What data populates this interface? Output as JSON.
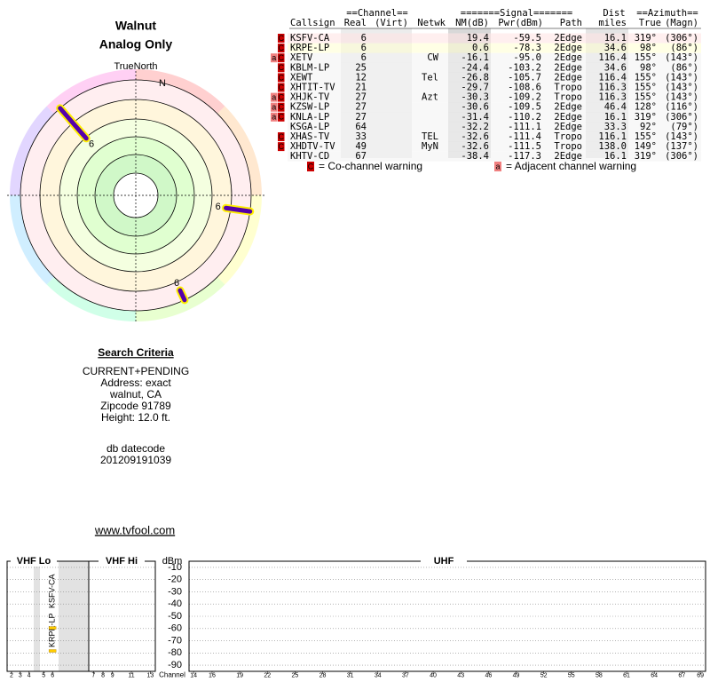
{
  "header": {
    "location": "Walnut",
    "mode": "Analog Only",
    "north": "TrueNorth",
    "north_marker": "N"
  },
  "table": {
    "group_headers": [
      "==Channel==",
      "=======Signal=======",
      "Dist",
      "==Azimuth=="
    ],
    "columns": [
      "Callsign",
      "Real",
      "(Virt)",
      "Netwk",
      "NM(dB)",
      "Pwr(dBm)",
      "Path",
      "miles",
      "True",
      "(Magn)"
    ],
    "rows": [
      {
        "flags": [
          "C"
        ],
        "callsign": "KSFV-CA",
        "real": "6",
        "netwk": "",
        "nm": "19.4",
        "pwr": "-59.5",
        "path": "2Edge",
        "miles": "16.1",
        "true": "319°",
        "magn": "(306°)",
        "color": "#990033",
        "bg": "#ffe4e4"
      },
      {
        "flags": [
          "C"
        ],
        "callsign": "KRPE-LP",
        "real": "6",
        "netwk": "",
        "nm": "0.6",
        "pwr": "-78.3",
        "path": "2Edge",
        "miles": "34.6",
        "true": "98°",
        "magn": "(86°)",
        "color": "#808000",
        "bg": "#ffffd4"
      },
      {
        "flags": [
          "a",
          "C"
        ],
        "callsign": "XETV",
        "real": "6",
        "netwk": "CW",
        "nm": "-16.1",
        "pwr": "-95.0",
        "path": "2Edge",
        "miles": "116.4",
        "true": "155°",
        "magn": "(143°)",
        "color": "#006633",
        "bg": "#f4f4f4"
      },
      {
        "flags": [
          "C"
        ],
        "callsign": "KBLM-LP",
        "real": "25",
        "netwk": "",
        "nm": "-24.4",
        "pwr": "-103.2",
        "path": "2Edge",
        "miles": "34.6",
        "true": "98°",
        "magn": "(86°)",
        "color": "#808000",
        "bg": "#f4f4f4"
      },
      {
        "flags": [
          "C"
        ],
        "callsign": "XEWT",
        "real": "12",
        "netwk": "Tel",
        "nm": "-26.8",
        "pwr": "-105.7",
        "path": "2Edge",
        "miles": "116.4",
        "true": "155°",
        "magn": "(143°)",
        "color": "#006633",
        "bg": "#f4f4f4"
      },
      {
        "flags": [
          "C"
        ],
        "callsign": "XHTIT-TV",
        "real": "21",
        "netwk": "",
        "nm": "-29.7",
        "pwr": "-108.6",
        "path": "Tropo",
        "miles": "116.3",
        "true": "155°",
        "magn": "(143°)",
        "color": "#006633",
        "bg": "#f4f4f4"
      },
      {
        "flags": [
          "a",
          "C"
        ],
        "callsign": "XHJK-TV",
        "real": "27",
        "netwk": "Azt",
        "nm": "-30.3",
        "pwr": "-109.2",
        "path": "Tropo",
        "miles": "116.3",
        "true": "155°",
        "magn": "(143°)",
        "color": "#006633",
        "bg": "#f4f4f4"
      },
      {
        "flags": [
          "a",
          "C"
        ],
        "callsign": "KZSW-LP",
        "real": "27",
        "netwk": "",
        "nm": "-30.6",
        "pwr": "-109.5",
        "path": "2Edge",
        "miles": "46.4",
        "true": "128°",
        "magn": "(116°)",
        "color": "#006633",
        "bg": "#f4f4f4"
      },
      {
        "flags": [
          "a",
          "C"
        ],
        "callsign": "KNLA-LP",
        "real": "27",
        "netwk": "",
        "nm": "-31.4",
        "pwr": "-110.2",
        "path": "2Edge",
        "miles": "16.1",
        "true": "319°",
        "magn": "(306°)",
        "color": "#990033",
        "bg": "#f4f4f4"
      },
      {
        "flags": [],
        "callsign": "KSGA-LP",
        "real": "64",
        "netwk": "",
        "nm": "-32.2",
        "pwr": "-111.1",
        "path": "2Edge",
        "miles": "33.3",
        "true": "92°",
        "magn": "(79°)",
        "color": "#808000",
        "bg": "#f4f4f4"
      },
      {
        "flags": [
          "C"
        ],
        "callsign": "XHAS-TV",
        "real": "33",
        "netwk": "TEL",
        "nm": "-32.6",
        "pwr": "-111.4",
        "path": "Tropo",
        "miles": "116.1",
        "true": "155°",
        "magn": "(143°)",
        "color": "#006633",
        "bg": "#f4f4f4"
      },
      {
        "flags": [
          "C"
        ],
        "callsign": "XHDTV-TV",
        "real": "49",
        "netwk": "MyN",
        "nm": "-32.6",
        "pwr": "-111.5",
        "path": "Tropo",
        "miles": "138.0",
        "true": "149°",
        "magn": "(137°)",
        "color": "#006633",
        "bg": "#f4f4f4"
      },
      {
        "flags": [],
        "callsign": "KHTV-CD",
        "real": "67",
        "netwk": "",
        "nm": "-38.4",
        "pwr": "-117.3",
        "path": "2Edge",
        "miles": "16.1",
        "true": "319°",
        "magn": "(306°)",
        "color": "#990033",
        "bg": "#f4f4f4"
      }
    ]
  },
  "legend": [
    {
      "icon": "C",
      "text": "= Co-channel warning",
      "color": "#cc0000"
    },
    {
      "icon": "a",
      "text": "= Adjacent channel warning",
      "color": "#f08080"
    }
  ],
  "polar": {
    "stations": [
      {
        "label": "6",
        "azimuth": 319,
        "nm": 19.4
      },
      {
        "label": "6",
        "azimuth": 98,
        "nm": 0.6
      },
      {
        "label": "6",
        "azimuth": 155,
        "nm": -16.1
      }
    ]
  },
  "criteria": {
    "title": "Search Criteria",
    "lines": [
      "CURRENT+PENDING",
      "Address: exact",
      "walnut, CA",
      "Zipcode 91789",
      "Height: 12.0 ft."
    ],
    "datecode_label": "db datecode",
    "datecode": "201209191039"
  },
  "link": "www.tvfool.com",
  "spectrum": {
    "bands": [
      "VHF Lo",
      "VHF Hi",
      "UHF"
    ],
    "y_label": "dBm",
    "x_label": "Channel",
    "ylim": [
      -95,
      -5
    ],
    "yticks": [
      -10,
      -20,
      -30,
      -40,
      -50,
      -60,
      -70,
      -80,
      -90
    ],
    "xticks": [
      2,
      3,
      4,
      5,
      6,
      7,
      8,
      9,
      11,
      13,
      14,
      16,
      19,
      22,
      25,
      28,
      31,
      34,
      37,
      40,
      43,
      46,
      49,
      52,
      55,
      58,
      61,
      64,
      67,
      69
    ],
    "signals": [
      {
        "name": "KRPE-LP",
        "channel": 6,
        "value": -78.3,
        "color": "#ffcc00"
      },
      {
        "name": "KSFV-CA",
        "channel": 6,
        "value": -59.5,
        "color": "#ffcc00"
      }
    ]
  }
}
